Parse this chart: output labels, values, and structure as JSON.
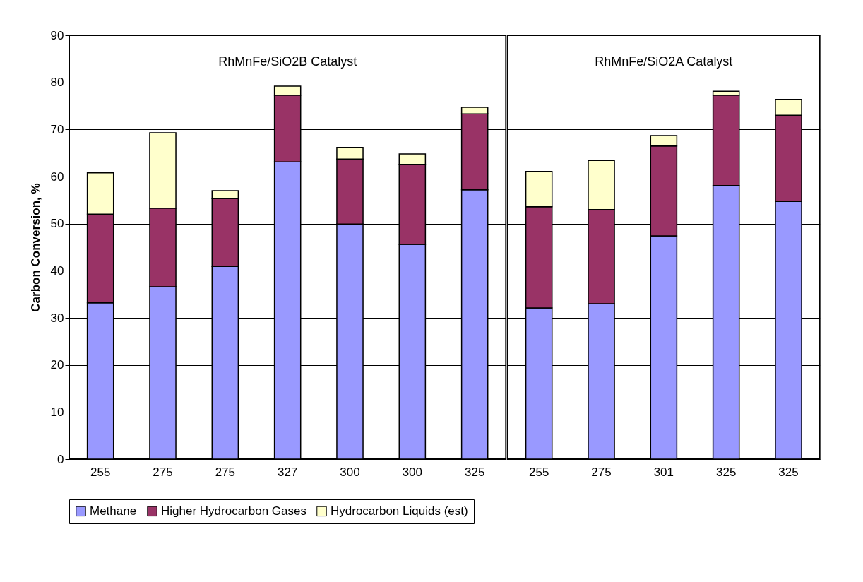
{
  "chart_data": [
    {
      "type": "bar",
      "title": "RhMnFe/SiO2B Catalyst",
      "ylabel": "Carbon Conversion, %",
      "categories": [
        "255",
        "275",
        "275",
        "327",
        "300",
        "300",
        "325"
      ],
      "stacked": true,
      "ylim": [
        0,
        90
      ],
      "yticks": [
        0,
        10,
        20,
        30,
        40,
        50,
        60,
        70,
        80,
        90
      ],
      "grid": "y",
      "legend": "bottom",
      "series": [
        {
          "name": "Methane",
          "color": "#9999ff",
          "values": [
            33.2,
            36.6,
            40.9,
            63.1,
            49.9,
            45.6,
            57.2
          ]
        },
        {
          "name": "Higher Hydrocarbon Gases",
          "color": "#993366",
          "values": [
            18.8,
            16.7,
            14.4,
            14.2,
            13.8,
            17.0,
            16.1
          ]
        },
        {
          "name": "Hydrocarbon Liquids (est)",
          "color": "#ffffcc",
          "values": [
            8.8,
            16.0,
            1.7,
            1.9,
            2.5,
            2.2,
            1.4
          ]
        }
      ]
    },
    {
      "type": "bar",
      "title": "RhMnFe/SiO2A Catalyst",
      "categories": [
        "255",
        "275",
        "301",
        "325",
        "325"
      ],
      "stacked": true,
      "ylim": [
        0,
        90
      ],
      "yticks": [
        0,
        10,
        20,
        30,
        40,
        50,
        60,
        70,
        80,
        90
      ],
      "grid": "y",
      "legend": "bottom",
      "tick_labels": "x",
      "series": [
        {
          "name": "Methane",
          "color": "#9999ff",
          "values": [
            32.1,
            33.0,
            47.4,
            58.1,
            54.7
          ]
        },
        {
          "name": "Higher Hydrocarbon Gases",
          "color": "#993366",
          "values": [
            21.5,
            20.0,
            19.1,
            19.2,
            18.3
          ]
        },
        {
          "name": "Hydrocarbon Liquids (est)",
          "color": "#ffffcc",
          "values": [
            7.5,
            10.4,
            2.2,
            0.8,
            3.4
          ]
        }
      ]
    }
  ]
}
